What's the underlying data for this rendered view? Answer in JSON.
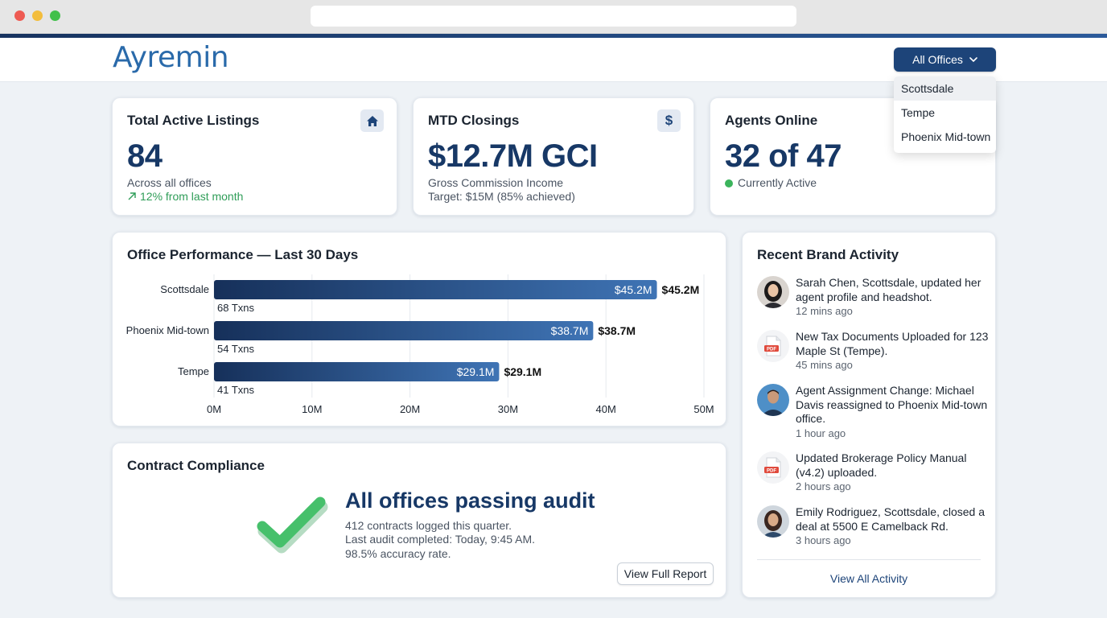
{
  "app": {
    "logo_text": "Ayremin",
    "office_selector": {
      "label": "All Offices",
      "options": [
        "Scottsdale",
        "Tempe",
        "Phoenix Mid-town"
      ],
      "highlighted": "Scottsdale"
    }
  },
  "kpis": [
    {
      "title": "Total Active Listings",
      "icon": "home-icon",
      "value": "84",
      "sub1": "Across all offices",
      "trend": "12% from last month"
    },
    {
      "title": "MTD Closings",
      "icon": "dollar-icon",
      "value": "$12.7M GCI",
      "sub1": "Gross Commission Income",
      "sub2": "Target: $15M (85% achieved)"
    },
    {
      "title": "Agents Online",
      "value": "32 of 47",
      "status": "Currently Active"
    }
  ],
  "performance": {
    "title": "Office Performance — Last 30 Days"
  },
  "chart_data": {
    "type": "bar",
    "orientation": "horizontal",
    "title": "Office Performance — Last 30 Days",
    "categories": [
      "Scottsdale",
      "Phoenix Mid-town",
      "Tempe"
    ],
    "values": [
      45.2,
      38.7,
      29.1
    ],
    "value_labels": [
      "$45.2M",
      "$38.7M",
      "$29.1M"
    ],
    "transactions": [
      "68 Txns",
      "54 Txns",
      "41 Txns"
    ],
    "xlim": [
      0,
      50
    ],
    "xticks": [
      0,
      10,
      20,
      30,
      40,
      50
    ],
    "xtick_labels": [
      "0M",
      "10M",
      "20M",
      "30M",
      "40M",
      "50M"
    ],
    "grid": true,
    "bar_color_start": "#16305a",
    "bar_color_end": "#3f74b5"
  },
  "activity": {
    "title": "Recent Brand Activity",
    "items": [
      {
        "avatar": "woman-avatar",
        "text": "Sarah Chen, Scottsdale, updated her agent profile and headshot.",
        "time": "12 mins ago"
      },
      {
        "avatar": "pdf-icon",
        "text": "New Tax Documents Uploaded for 123 Maple St (Tempe).",
        "time": "45 mins ago"
      },
      {
        "avatar": "man-avatar",
        "text": "Agent Assignment Change: Michael Davis reassigned to Phoenix Mid-town office.",
        "time": "1 hour ago"
      },
      {
        "avatar": "pdf-icon",
        "text": "Updated Brokerage Policy Manual (v4.2) uploaded.",
        "time": "2 hours ago"
      },
      {
        "avatar": "woman-avatar",
        "text": "Emily Rodriguez, Scottsdale, closed a deal at 5500 E Camelback Rd.",
        "time": "3 hours ago"
      }
    ],
    "view_all": "View All Activity"
  },
  "compliance": {
    "title": "Contract Compliance",
    "headline": "All offices passing audit",
    "lines": [
      "412 contracts logged this quarter.",
      "Last audit completed: Today, 9:45 AM.",
      "98.5% accuracy rate."
    ],
    "report_button": "View Full Report"
  },
  "colors": {
    "brand_navy": "#173866",
    "accent_blue": "#2a6aaa",
    "success_green": "#3bb45c"
  }
}
